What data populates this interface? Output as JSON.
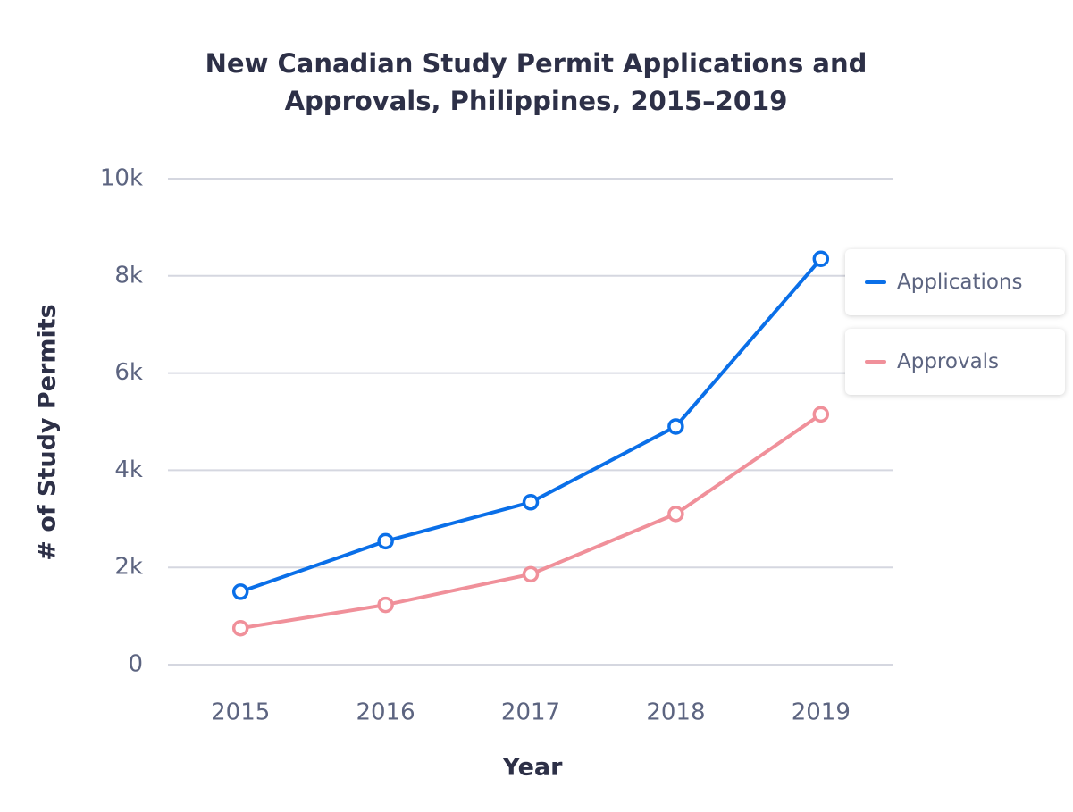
{
  "chart_data": {
    "type": "line",
    "title": "New Canadian Study Permit Applications and Approvals, Philippines, 2015–2019",
    "x_label": "Year",
    "y_label": "# of Study Permits",
    "categories": [
      "2015",
      "2016",
      "2017",
      "2018",
      "2019"
    ],
    "series": [
      {
        "name": "Applications",
        "color": "#0a6fe8",
        "values": [
          1500,
          2540,
          3340,
          4900,
          8350
        ]
      },
      {
        "name": "Approvals",
        "color": "#f0909a",
        "values": [
          750,
          1230,
          1860,
          3100,
          5150
        ]
      }
    ],
    "ylim": [
      0,
      10000
    ],
    "yticks": [
      0,
      {
        "value": 2000,
        "label": "2k"
      },
      {
        "value": 4000,
        "label": "4k"
      },
      {
        "value": 6000,
        "label": "6k"
      },
      {
        "value": 8000,
        "label": "8k"
      },
      {
        "value": 10000,
        "label": "10k"
      }
    ],
    "grid": true,
    "legend": "right"
  }
}
